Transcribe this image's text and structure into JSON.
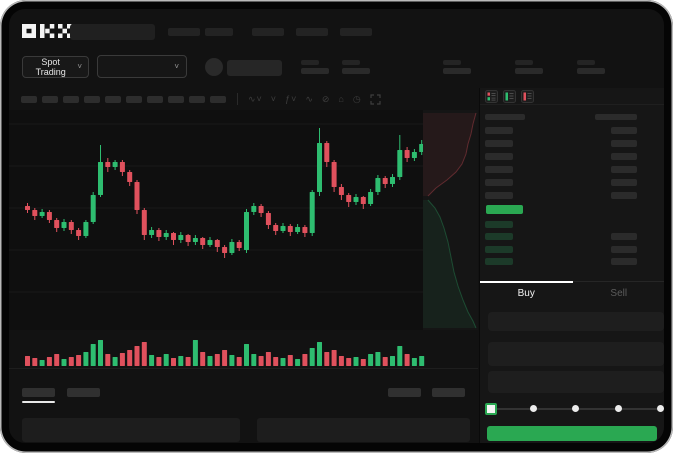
{
  "colors": {
    "candle_green": "#2ebd70",
    "candle_red": "#e0515d",
    "accent_green": "#2aa852",
    "active_tab_underline": "#ffffff"
  },
  "brand": {
    "name": "OKX"
  },
  "market_selector": {
    "label": "Spot Trading",
    "chevron_glyph": "˅"
  },
  "pair_selector": {
    "chevron_glyph": "˅"
  },
  "chart_toolbar": {
    "icons": [
      {
        "name": "line-type-icon",
        "glyph": "∿˅"
      },
      {
        "name": "interval-chevron-icon",
        "glyph": "˅"
      },
      {
        "name": "indicators-icon",
        "glyph": "ƒ˅"
      },
      {
        "name": "wave-tool-icon",
        "glyph": "∿"
      },
      {
        "name": "compare-icon",
        "glyph": "⊘"
      },
      {
        "name": "snapshot-icon",
        "glyph": "⌂"
      },
      {
        "name": "history-icon",
        "glyph": "◷"
      }
    ]
  },
  "order_book": {
    "view_modes": [
      "combined-book",
      "bids-only",
      "asks-only"
    ],
    "ask_rows": 6,
    "bid_rows": 4,
    "bid_rows_with_total": [
      1,
      2,
      3
    ]
  },
  "trade_panel": {
    "tabs": [
      {
        "id": "buy",
        "label": "Buy",
        "active": true
      },
      {
        "id": "sell",
        "label": "Sell",
        "active": false
      }
    ],
    "input_rows": 3,
    "slider_stops": 5,
    "slider_active_stop": 0
  },
  "chart_data": {
    "type": "candlestick",
    "title": "",
    "x_unit": "bars",
    "price_unit": "relative-points",
    "price_range": [
      60,
      210
    ],
    "grid_y_levels": [
      38,
      80,
      122,
      164,
      206
    ],
    "candles": [
      [
        124,
        120,
        127,
        117
      ],
      [
        120,
        114,
        122,
        110
      ],
      [
        114,
        118,
        121,
        112
      ],
      [
        118,
        110,
        120,
        107
      ],
      [
        110,
        102,
        112,
        98
      ],
      [
        102,
        108,
        111,
        99
      ],
      [
        108,
        100,
        110,
        96
      ],
      [
        100,
        94,
        102,
        90
      ],
      [
        94,
        108,
        110,
        92
      ],
      [
        108,
        135,
        138,
        106
      ],
      [
        135,
        168,
        185,
        133
      ],
      [
        168,
        163,
        172,
        158
      ],
      [
        163,
        168,
        170,
        160
      ],
      [
        168,
        158,
        170,
        154
      ],
      [
        158,
        148,
        160,
        144
      ],
      [
        148,
        120,
        150,
        116
      ],
      [
        120,
        95,
        122,
        90
      ],
      [
        95,
        100,
        103,
        92
      ],
      [
        100,
        93,
        102,
        89
      ],
      [
        93,
        97,
        100,
        90
      ],
      [
        97,
        90,
        98,
        85
      ],
      [
        90,
        95,
        98,
        87
      ],
      [
        95,
        88,
        96,
        84
      ],
      [
        88,
        92,
        95,
        85
      ],
      [
        92,
        85,
        93,
        81
      ],
      [
        85,
        90,
        93,
        83
      ],
      [
        90,
        83,
        91,
        78
      ],
      [
        83,
        77,
        85,
        72
      ],
      [
        77,
        88,
        91,
        75
      ],
      [
        88,
        82,
        90,
        79
      ],
      [
        80,
        118,
        121,
        77
      ],
      [
        118,
        124,
        127,
        115
      ],
      [
        124,
        117,
        126,
        113
      ],
      [
        117,
        105,
        119,
        101
      ],
      [
        105,
        99,
        107,
        95
      ],
      [
        99,
        104,
        107,
        97
      ],
      [
        104,
        98,
        106,
        94
      ],
      [
        98,
        103,
        106,
        96
      ],
      [
        103,
        97,
        105,
        93
      ],
      [
        97,
        138,
        140,
        94
      ],
      [
        138,
        187,
        202,
        134
      ],
      [
        187,
        168,
        189,
        163
      ],
      [
        168,
        143,
        170,
        138
      ],
      [
        143,
        135,
        146,
        130
      ],
      [
        135,
        128,
        137,
        123
      ],
      [
        128,
        133,
        136,
        125
      ],
      [
        133,
        126,
        134,
        121
      ],
      [
        126,
        138,
        141,
        124
      ],
      [
        138,
        152,
        155,
        135
      ],
      [
        152,
        146,
        154,
        142
      ],
      [
        146,
        153,
        156,
        143
      ],
      [
        153,
        180,
        195,
        150
      ],
      [
        180,
        172,
        183,
        168
      ],
      [
        172,
        178,
        181,
        169
      ],
      [
        178,
        186,
        190,
        175
      ]
    ],
    "volumes": [
      10,
      8,
      6,
      9,
      12,
      7,
      9,
      11,
      14,
      22,
      26,
      12,
      9,
      13,
      16,
      20,
      24,
      11,
      9,
      12,
      8,
      10,
      9,
      26,
      14,
      10,
      12,
      16,
      11,
      9,
      22,
      12,
      10,
      14,
      9,
      8,
      11,
      7,
      12,
      18,
      24,
      14,
      16,
      10,
      8,
      9,
      7,
      12,
      14,
      9,
      10,
      20,
      12,
      8,
      10
    ],
    "depth_profile": {
      "asks_curve": [
        [
          53,
          3
        ],
        [
          50,
          14
        ],
        [
          48,
          24
        ],
        [
          45,
          34
        ],
        [
          43,
          44
        ],
        [
          39,
          54
        ],
        [
          33,
          62
        ],
        [
          24,
          70
        ],
        [
          13,
          78
        ],
        [
          5,
          86
        ]
      ],
      "bids_curve": [
        [
          5,
          90
        ],
        [
          12,
          98
        ],
        [
          17,
          107
        ],
        [
          21,
          118
        ],
        [
          25,
          132
        ],
        [
          28,
          147
        ],
        [
          31,
          162
        ],
        [
          35,
          176
        ],
        [
          40,
          190
        ],
        [
          45,
          202
        ],
        [
          50,
          211
        ],
        [
          53,
          218
        ]
      ]
    }
  }
}
